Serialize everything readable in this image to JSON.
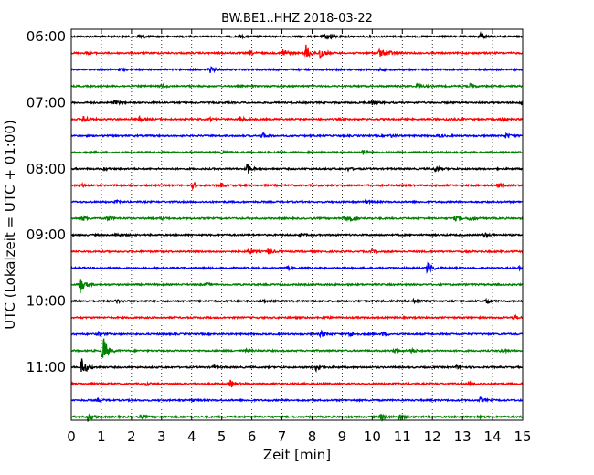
{
  "chart_data": {
    "type": "line",
    "title": "BW.BE1..HHZ 2018-03-22",
    "xlabel": "Zeit  [min]",
    "ylabel": "UTC (Lokalzeit = UTC + 01:00)",
    "xlim": [
      0,
      15
    ],
    "x_ticks": [
      "0",
      "1",
      "2",
      "3",
      "4",
      "5",
      "6",
      "7",
      "8",
      "9",
      "10",
      "11",
      "12",
      "13",
      "14",
      "15"
    ],
    "y_ticks": [
      {
        "label": "06:00",
        "row": 0
      },
      {
        "label": "07:00",
        "row": 4
      },
      {
        "label": "08:00",
        "row": 8
      },
      {
        "label": "09:00",
        "row": 12
      },
      {
        "label": "10:00",
        "row": 16
      },
      {
        "label": "11:00",
        "row": 20
      }
    ],
    "grid": "vertical dotted lines at each minute",
    "series_colors": [
      "#000000",
      "#ff0000",
      "#0000ff",
      "#008000"
    ],
    "rows": [
      {
        "start": "06:00",
        "color": "#000000",
        "events": [
          {
            "t": 2.25,
            "a": 0.45
          },
          {
            "t": 8.4,
            "a": 0.35
          },
          {
            "t": 8.6,
            "a": 0.3
          },
          {
            "t": 13.6,
            "a": 0.6
          },
          {
            "t": 5.6,
            "a": 0.2
          }
        ]
      },
      {
        "start": "06:15",
        "color": "#ff0000",
        "events": [
          {
            "t": 7.05,
            "a": 0.7
          },
          {
            "t": 7.8,
            "a": 1.2
          },
          {
            "t": 8.25,
            "a": 1.1
          },
          {
            "t": 10.25,
            "a": 0.7
          },
          {
            "t": 10.5,
            "a": 0.5
          },
          {
            "t": 5.95,
            "a": 0.3
          },
          {
            "t": 0.5,
            "a": 0.2
          }
        ]
      },
      {
        "start": "06:30",
        "color": "#0000ff",
        "events": [
          {
            "t": 4.6,
            "a": 0.45
          },
          {
            "t": 10.2,
            "a": 0.2
          },
          {
            "t": 1.6,
            "a": 0.2
          }
        ]
      },
      {
        "start": "06:45",
        "color": "#008000",
        "events": [
          {
            "t": 11.5,
            "a": 0.4
          },
          {
            "t": 13.25,
            "a": 0.3
          },
          {
            "t": 3.0,
            "a": 0.2
          }
        ]
      },
      {
        "start": "07:00",
        "color": "#000000",
        "events": [
          {
            "t": 10.0,
            "a": 0.35
          },
          {
            "t": 1.45,
            "a": 0.3
          },
          {
            "t": 14.95,
            "a": 0.3
          }
        ]
      },
      {
        "start": "07:15",
        "color": "#ff0000",
        "events": [
          {
            "t": 0.4,
            "a": 0.75
          },
          {
            "t": 2.25,
            "a": 0.35
          },
          {
            "t": 5.6,
            "a": 0.45
          },
          {
            "t": 14.3,
            "a": 0.5
          },
          {
            "t": 4.6,
            "a": 0.2
          },
          {
            "t": 12.5,
            "a": 0.25
          }
        ]
      },
      {
        "start": "07:30",
        "color": "#0000ff",
        "events": [
          {
            "t": 6.35,
            "a": 0.4
          },
          {
            "t": 12.2,
            "a": 0.3
          },
          {
            "t": 14.45,
            "a": 0.35
          },
          {
            "t": 10.6,
            "a": 0.2
          }
        ]
      },
      {
        "start": "07:45",
        "color": "#008000",
        "events": [
          {
            "t": 9.7,
            "a": 0.45
          },
          {
            "t": 5.0,
            "a": 0.2
          }
        ]
      },
      {
        "start": "08:00",
        "color": "#000000",
        "events": [
          {
            "t": 5.85,
            "a": 0.75
          },
          {
            "t": 12.1,
            "a": 0.45
          },
          {
            "t": 1.1,
            "a": 0.2
          },
          {
            "t": 9.2,
            "a": 0.2
          }
        ]
      },
      {
        "start": "08:15",
        "color": "#ff0000",
        "events": [
          {
            "t": 0.3,
            "a": 0.3
          },
          {
            "t": 4.05,
            "a": 0.5
          },
          {
            "t": 4.95,
            "a": 0.25
          },
          {
            "t": 14.2,
            "a": 0.25
          }
        ]
      },
      {
        "start": "08:30",
        "color": "#0000ff",
        "events": [
          {
            "t": 1.5,
            "a": 0.15
          },
          {
            "t": 9.8,
            "a": 0.2
          }
        ]
      },
      {
        "start": "08:45",
        "color": "#008000",
        "events": [
          {
            "t": 0.4,
            "a": 0.35
          },
          {
            "t": 1.2,
            "a": 0.4
          },
          {
            "t": 9.05,
            "a": 0.45
          },
          {
            "t": 9.3,
            "a": 0.35
          },
          {
            "t": 12.75,
            "a": 0.35
          },
          {
            "t": 13.25,
            "a": 0.4
          },
          {
            "t": 3.0,
            "a": 0.2
          }
        ]
      },
      {
        "start": "09:00",
        "color": "#000000",
        "events": [
          {
            "t": 13.7,
            "a": 0.4
          },
          {
            "t": 1.5,
            "a": 0.25
          },
          {
            "t": 7.6,
            "a": 0.2
          }
        ]
      },
      {
        "start": "09:15",
        "color": "#ff0000",
        "events": [
          {
            "t": 5.9,
            "a": 0.45
          },
          {
            "t": 6.55,
            "a": 0.4
          },
          {
            "t": 10.0,
            "a": 0.2
          }
        ]
      },
      {
        "start": "09:30",
        "color": "#0000ff",
        "events": [
          {
            "t": 11.85,
            "a": 1.0
          },
          {
            "t": 7.2,
            "a": 0.25
          },
          {
            "t": 14.9,
            "a": 0.25
          }
        ]
      },
      {
        "start": "09:45",
        "color": "#008000",
        "events": [
          {
            "t": 0.3,
            "a": 1.3
          },
          {
            "t": 4.5,
            "a": 0.2
          }
        ]
      },
      {
        "start": "10:00",
        "color": "#000000",
        "events": [
          {
            "t": 11.4,
            "a": 0.45
          },
          {
            "t": 13.8,
            "a": 0.4
          },
          {
            "t": 1.5,
            "a": 0.25
          },
          {
            "t": 6.3,
            "a": 0.2
          }
        ]
      },
      {
        "start": "10:15",
        "color": "#ff0000",
        "events": [
          {
            "t": 14.7,
            "a": 0.35
          },
          {
            "t": 8.4,
            "a": 0.2
          }
        ]
      },
      {
        "start": "10:30",
        "color": "#0000ff",
        "events": [
          {
            "t": 0.9,
            "a": 0.3
          },
          {
            "t": 8.3,
            "a": 0.5
          },
          {
            "t": 9.25,
            "a": 0.45
          },
          {
            "t": 10.35,
            "a": 0.35
          }
        ]
      },
      {
        "start": "10:45",
        "color": "#008000",
        "events": [
          {
            "t": 1.05,
            "a": 2.6
          },
          {
            "t": 10.75,
            "a": 0.45
          },
          {
            "t": 11.3,
            "a": 0.3
          },
          {
            "t": 14.3,
            "a": 0.3
          },
          {
            "t": 5.8,
            "a": 0.2
          }
        ]
      },
      {
        "start": "11:00",
        "color": "#000000",
        "events": [
          {
            "t": 0.35,
            "a": 1.6
          },
          {
            "t": 8.15,
            "a": 0.65
          },
          {
            "t": 4.7,
            "a": 0.2
          },
          {
            "t": 12.8,
            "a": 0.2
          }
        ]
      },
      {
        "start": "11:15",
        "color": "#ff0000",
        "events": [
          {
            "t": 5.3,
            "a": 0.6
          },
          {
            "t": 2.5,
            "a": 0.2
          },
          {
            "t": 13.2,
            "a": 0.25
          }
        ]
      },
      {
        "start": "11:30",
        "color": "#0000ff",
        "events": [
          {
            "t": 13.6,
            "a": 0.35
          },
          {
            "t": 0.9,
            "a": 0.2
          },
          {
            "t": 4.0,
            "a": 0.2
          }
        ]
      },
      {
        "start": "11:45",
        "color": "#008000",
        "events": [
          {
            "t": 0.55,
            "a": 0.7
          },
          {
            "t": 10.3,
            "a": 0.55
          },
          {
            "t": 10.9,
            "a": 0.4
          },
          {
            "t": 2.3,
            "a": 0.2
          },
          {
            "t": 13.5,
            "a": 0.2
          }
        ]
      }
    ]
  }
}
